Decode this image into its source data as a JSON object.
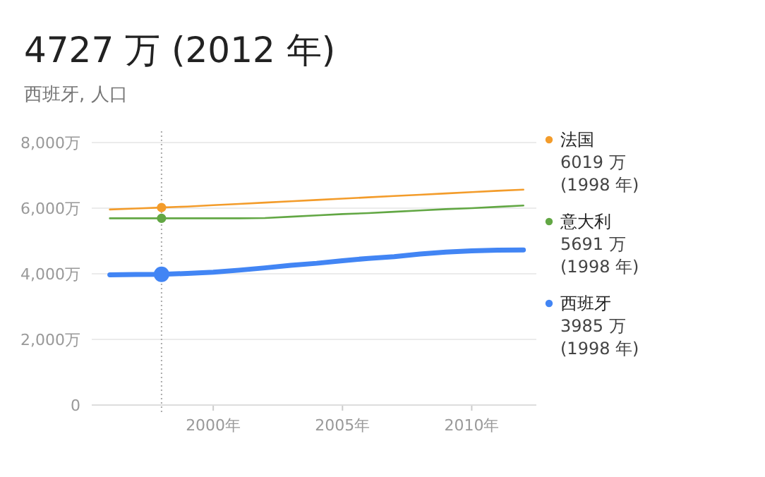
{
  "chart_data": {
    "type": "line",
    "title": "4727 万 (2012 年)",
    "subtitle": "西班牙, 人口",
    "x": [
      1996,
      1997,
      1998,
      1999,
      2000,
      2001,
      2002,
      2003,
      2004,
      2005,
      2006,
      2007,
      2008,
      2009,
      2010,
      2011,
      2012
    ],
    "series": [
      {
        "name": "法国",
        "color": "#f39c2b",
        "values": [
          5960,
          5990,
          6019,
          6050,
          6090,
          6130,
          6170,
          6210,
          6250,
          6290,
          6330,
          6370,
          6410,
          6450,
          6490,
          6530,
          6565
        ]
      },
      {
        "name": "意大利",
        "color": "#62a744",
        "values": [
          5690,
          5690,
          5691,
          5690,
          5690,
          5690,
          5700,
          5740,
          5780,
          5820,
          5850,
          5890,
          5930,
          5970,
          6000,
          6040,
          6080
        ]
      },
      {
        "name": "西班牙",
        "color": "#4285f4",
        "values": [
          3970,
          3980,
          3985,
          4010,
          4050,
          4110,
          4180,
          4260,
          4320,
          4400,
          4470,
          4520,
          4600,
          4660,
          4700,
          4720,
          4727
        ]
      }
    ],
    "annotations": [
      "6019 万\n(1998 年)",
      "5691 万\n(1998 年)",
      "3985 万\n(1998 年)"
    ],
    "ref_lines": [
      {
        "axis": "x",
        "value": 1998,
        "line_style": "dotted",
        "color": "#aaaaaa"
      }
    ],
    "xlim": [
      1995.3,
      2012.5
    ],
    "xticks": [
      {
        "value": 2000,
        "label": "2000年"
      },
      {
        "value": 2005,
        "label": "2005年"
      },
      {
        "value": 2010,
        "label": "2010年"
      }
    ],
    "ylim": [
      0,
      8000
    ],
    "yticks": [
      0,
      {
        "value": 2000,
        "label": "2,000万"
      },
      {
        "value": 4000,
        "label": "4,000万"
      },
      {
        "value": 6000,
        "label": "6,000万"
      },
      {
        "value": 8000,
        "label": "8,000万"
      }
    ],
    "grid": "y",
    "legend": "right",
    "marker": "none",
    "line_style": "solid"
  }
}
